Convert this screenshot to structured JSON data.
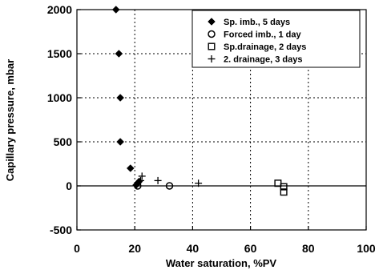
{
  "chart_data": {
    "type": "scatter",
    "xlabel": "Water saturation, %PV",
    "ylabel": "Capillary pressure, mbar",
    "xlim": [
      0,
      100
    ],
    "ylim": [
      -500,
      2000
    ],
    "x_ticks": [
      0,
      20,
      40,
      60,
      80,
      100
    ],
    "y_ticks": [
      -500,
      0,
      500,
      1000,
      1500,
      2000
    ],
    "grid": true,
    "grid_style": "dotted",
    "legend_position": "top-right",
    "series": [
      {
        "name": "Sp. imb., 5 days",
        "marker": "filled-diamond",
        "x": [
          13.5,
          14.5,
          15,
          15,
          18.5,
          20.5,
          21,
          21.5
        ],
        "y": [
          2000,
          1500,
          1000,
          500,
          200,
          10,
          30,
          50
        ]
      },
      {
        "name": "Forced imb., 1 day",
        "marker": "open-circle",
        "x": [
          21,
          32
        ],
        "y": [
          0,
          0
        ]
      },
      {
        "name": "Sp.drainage, 2 days",
        "marker": "open-square",
        "x": [
          69.5,
          71.5,
          71.5
        ],
        "y": [
          30,
          -10,
          -70
        ]
      },
      {
        "name": "2. drainage, 3 days",
        "marker": "plus",
        "x": [
          22,
          22.5,
          28,
          42
        ],
        "y": [
          60,
          110,
          60,
          30
        ]
      }
    ]
  }
}
